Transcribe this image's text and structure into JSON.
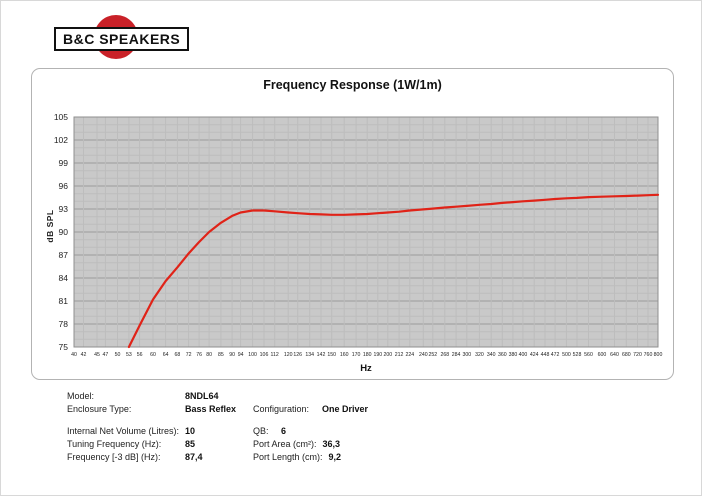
{
  "logo": {
    "text": "B&C SPEAKERS",
    "circle_color": "#c92128"
  },
  "chart": {
    "title": "Frequency Response (1W/1m)",
    "xlabel": "Hz",
    "ylabel": "dB SPL"
  },
  "chart_data": {
    "type": "line",
    "title": "Frequency Response (1W/1m)",
    "xlabel": "Hz",
    "ylabel": "dB SPL",
    "x_scale": "log",
    "xlim": [
      40,
      800
    ],
    "ylim": [
      75,
      105
    ],
    "grid": "on",
    "legend": "none",
    "x_ticks": [
      40,
      42,
      45,
      47,
      50,
      53,
      56,
      60,
      64,
      68,
      72,
      76,
      80,
      85,
      90,
      94,
      100,
      106,
      112,
      120,
      126,
      134,
      142,
      150,
      160,
      170,
      180,
      190,
      200,
      212,
      224,
      240,
      252,
      268,
      284,
      300,
      320,
      340,
      360,
      380,
      400,
      424,
      448,
      472,
      500,
      528,
      560,
      600,
      640,
      680,
      720,
      760,
      800
    ],
    "y_ticks": [
      75,
      78,
      81,
      84,
      87,
      90,
      93,
      96,
      99,
      102,
      105
    ],
    "colors": {
      "plot_bg": "#c9c9c9",
      "grid_minor": "#bdbdbd",
      "grid_major": "#9c9c9c",
      "frame": "#8f8f8f",
      "curve": "#e02318",
      "tick_text": "#222222"
    },
    "series": [
      {
        "name": "SPL (1W/1m)",
        "color": "#e02318",
        "points": [
          [
            53,
            75.0
          ],
          [
            56,
            77.8
          ],
          [
            60,
            81.2
          ],
          [
            64,
            83.6
          ],
          [
            68,
            85.4
          ],
          [
            72,
            87.2
          ],
          [
            76,
            88.7
          ],
          [
            80,
            90.0
          ],
          [
            85,
            91.2
          ],
          [
            90,
            92.1
          ],
          [
            94,
            92.55
          ],
          [
            100,
            92.8
          ],
          [
            106,
            92.8
          ],
          [
            112,
            92.7
          ],
          [
            120,
            92.55
          ],
          [
            126,
            92.45
          ],
          [
            134,
            92.35
          ],
          [
            142,
            92.3
          ],
          [
            150,
            92.25
          ],
          [
            160,
            92.25
          ],
          [
            170,
            92.3
          ],
          [
            180,
            92.35
          ],
          [
            190,
            92.45
          ],
          [
            200,
            92.55
          ],
          [
            212,
            92.65
          ],
          [
            224,
            92.8
          ],
          [
            240,
            92.95
          ],
          [
            252,
            93.05
          ],
          [
            268,
            93.2
          ],
          [
            284,
            93.3
          ],
          [
            300,
            93.4
          ],
          [
            320,
            93.55
          ],
          [
            340,
            93.65
          ],
          [
            360,
            93.8
          ],
          [
            380,
            93.9
          ],
          [
            400,
            94.0
          ],
          [
            424,
            94.1
          ],
          [
            448,
            94.2
          ],
          [
            472,
            94.3
          ],
          [
            500,
            94.4
          ],
          [
            528,
            94.45
          ],
          [
            560,
            94.55
          ],
          [
            600,
            94.6
          ],
          [
            640,
            94.65
          ],
          [
            680,
            94.7
          ],
          [
            720,
            94.75
          ],
          [
            760,
            94.8
          ],
          [
            800,
            94.85
          ]
        ]
      }
    ]
  },
  "specs": {
    "rows": [
      {
        "label": "Model:",
        "value": "8NDL64",
        "label2": "",
        "value2": ""
      },
      {
        "label": "Enclosure Type:",
        "value": "Bass Reflex",
        "label2": "Configuration:",
        "value2": "One Driver"
      },
      {
        "label": "Internal Net Volume (Litres):",
        "value": "10",
        "label2": "QB:",
        "value2": "6"
      },
      {
        "label": "Tuning Frequency (Hz):",
        "value": "85",
        "label2": "Port Area (cm²):",
        "value2": "36,3"
      },
      {
        "label": "Frequency [-3 dB] (Hz):",
        "value": "87,4",
        "label2": "Port Length (cm):",
        "value2": "9,2"
      }
    ]
  }
}
